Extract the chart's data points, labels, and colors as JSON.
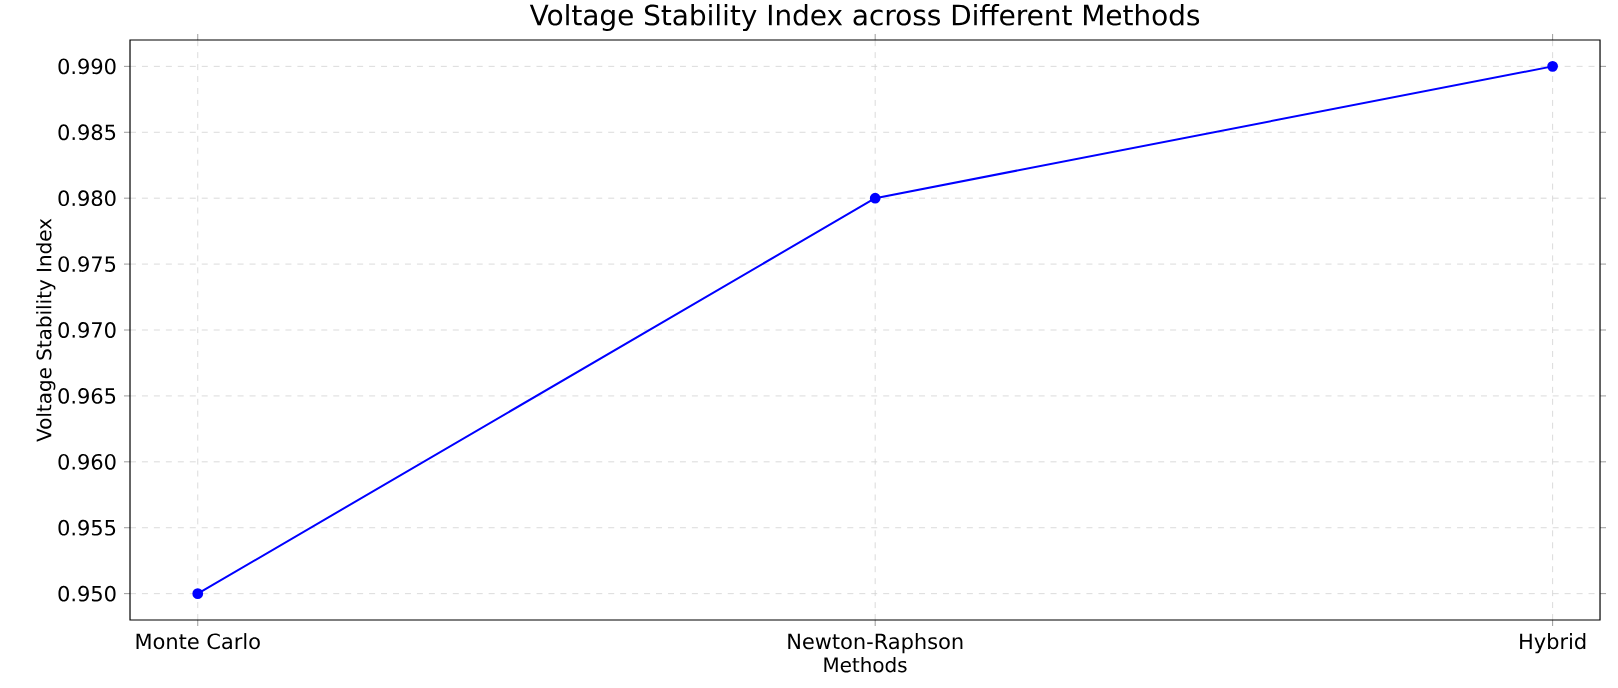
{
  "chart_data": {
    "type": "line",
    "title": "Voltage Stability Index across Different Methods",
    "xlabel": "Methods",
    "ylabel": "Voltage Stability Index",
    "categories": [
      "Monte Carlo",
      "Newton-Raphson",
      "Hybrid"
    ],
    "series": [
      {
        "color": "#0000ff",
        "values": [
          0.95,
          0.98,
          0.99
        ]
      }
    ],
    "ylim": [
      0.948,
      0.992
    ],
    "yticks": [
      {
        "value": 0.95,
        "label": "0.950"
      },
      {
        "value": 0.955,
        "label": "0.955"
      },
      {
        "value": 0.96,
        "label": "0.960"
      },
      {
        "value": 0.965,
        "label": "0.965"
      },
      {
        "value": 0.97,
        "label": "0.970"
      },
      {
        "value": 0.975,
        "label": "0.975"
      },
      {
        "value": 0.98,
        "label": "0.980"
      },
      {
        "value": 0.985,
        "label": "0.985"
      },
      {
        "value": 0.99,
        "label": "0.990"
      }
    ],
    "grid": true,
    "marker": "circle",
    "line_style": "solid"
  }
}
